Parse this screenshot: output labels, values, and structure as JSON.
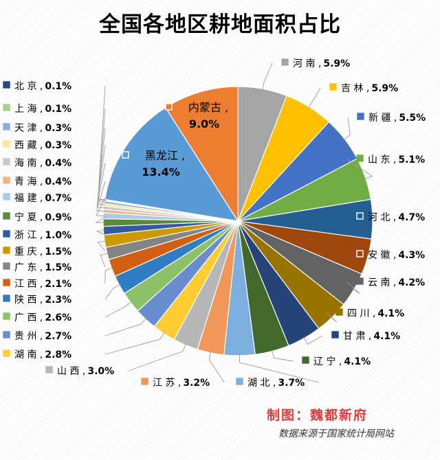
{
  "title": "全国各地区耕地面积占比",
  "credit": "制图：魏都新府",
  "source": "数据来源于国家统计局网站",
  "chart_data": {
    "type": "pie",
    "title": "全国各地区耕地面积占比",
    "unit": "%",
    "slices": [
      {
        "label": "河 南",
        "value": 5.9,
        "text": "5.9%",
        "color": "#a5a5a5"
      },
      {
        "label": "吉 林",
        "value": 5.9,
        "text": "5.9%",
        "color": "#ffc000"
      },
      {
        "label": "新 疆",
        "value": 5.5,
        "text": "5.5%",
        "color": "#4472c4"
      },
      {
        "label": "山 东",
        "value": 5.1,
        "text": "5.1%",
        "color": "#70ad47"
      },
      {
        "label": "河 北",
        "value": 4.7,
        "text": "4.7%",
        "color": "#255e91"
      },
      {
        "label": "安 徽",
        "value": 4.3,
        "text": "4.3%",
        "color": "#9e480e"
      },
      {
        "label": "云 南",
        "value": 4.2,
        "text": "4.2%",
        "color": "#636363"
      },
      {
        "label": "四 川",
        "value": 4.1,
        "text": "4.1%",
        "color": "#997300"
      },
      {
        "label": "甘 肃",
        "value": 4.1,
        "text": "4.1%",
        "color": "#264478"
      },
      {
        "label": "辽 宁",
        "value": 4.1,
        "text": "4.1%",
        "color": "#43682b"
      },
      {
        "label": "湖 北",
        "value": 3.7,
        "text": "3.7%",
        "color": "#7cafdd"
      },
      {
        "label": "江 苏",
        "value": 3.2,
        "text": "3.2%",
        "color": "#f1975a"
      },
      {
        "label": "山 西",
        "value": 3.0,
        "text": "3.0%",
        "color": "#b7b7b7"
      },
      {
        "label": "湖 南",
        "value": 2.8,
        "text": "2.8%",
        "color": "#ffcd33"
      },
      {
        "label": "贵 州",
        "value": 2.7,
        "text": "2.7%",
        "color": "#698ed0"
      },
      {
        "label": "广 西",
        "value": 2.6,
        "text": "2.6%",
        "color": "#8cc168"
      },
      {
        "label": "陕 西",
        "value": 2.3,
        "text": "2.3%",
        "color": "#327dc2"
      },
      {
        "label": "江 西",
        "value": 2.1,
        "text": "2.1%",
        "color": "#d26012"
      },
      {
        "label": "广 东",
        "value": 1.5,
        "text": "1.5%",
        "color": "#848484"
      },
      {
        "label": "重 庆",
        "value": 1.5,
        "text": "1.5%",
        "color": "#cc9a00"
      },
      {
        "label": "浙 江",
        "value": 1.0,
        "text": "1.0%",
        "color": "#335aa1"
      },
      {
        "label": "宁 夏",
        "value": 0.9,
        "text": "0.9%",
        "color": "#5a8a39"
      },
      {
        "label": "福 建",
        "value": 0.7,
        "text": "0.7%",
        "color": "#a9cbe8"
      },
      {
        "label": "青 海",
        "value": 0.4,
        "text": "0.4%",
        "color": "#f4b183"
      },
      {
        "label": "海 南",
        "value": 0.4,
        "text": "0.4%",
        "color": "#c9c9c9"
      },
      {
        "label": "西 藏",
        "value": 0.3,
        "text": "0.3%",
        "color": "#ffe699"
      },
      {
        "label": "天 津",
        "value": 0.3,
        "text": "0.3%",
        "color": "#8faadc"
      },
      {
        "label": "上 海",
        "value": 0.1,
        "text": "0.1%",
        "color": "#a9d18e"
      },
      {
        "label": "北 京",
        "value": 0.1,
        "text": "0.1%",
        "color": "#1f4e79"
      },
      {
        "label": "黑龙江",
        "value": 13.4,
        "text": "13.4%",
        "color": "#5b9bd5"
      },
      {
        "label": "内蒙古",
        "value": 9.0,
        "text": "9.0%",
        "color": "#ed7d31"
      }
    ],
    "legend": "left"
  }
}
